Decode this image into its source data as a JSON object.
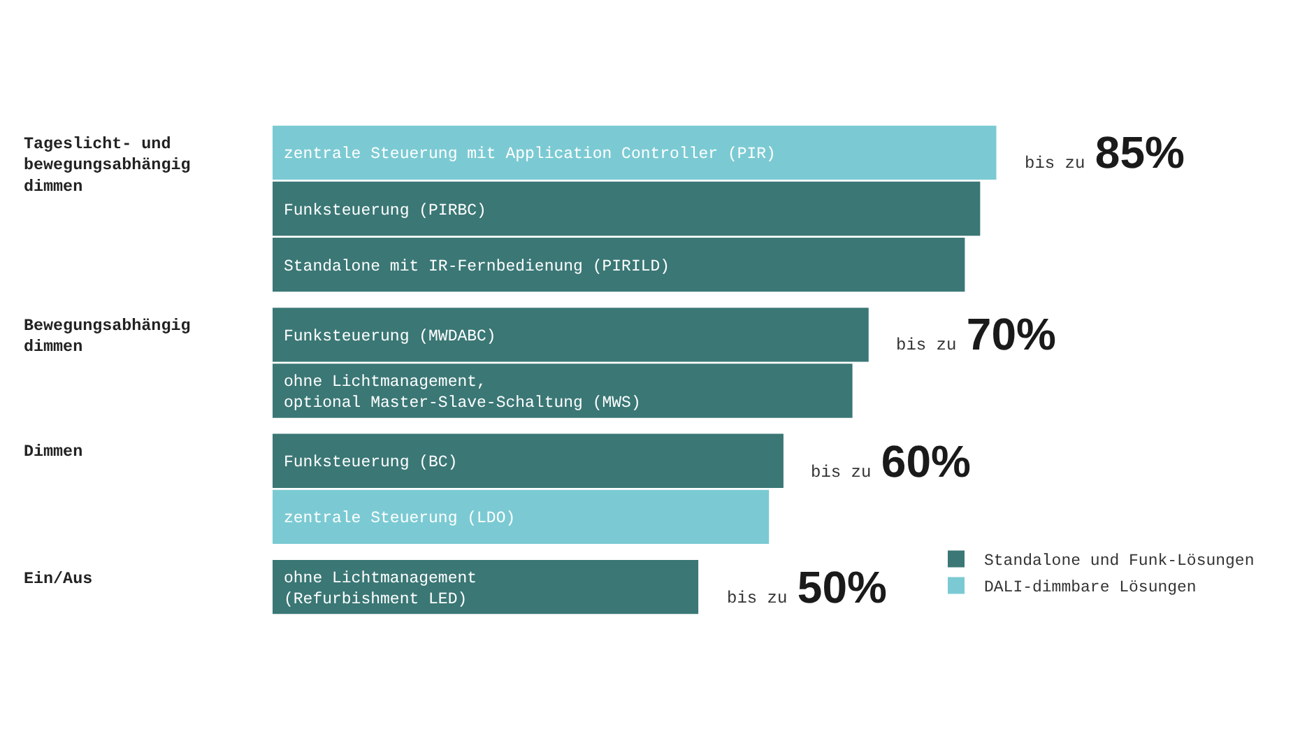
{
  "chart_data": {
    "type": "bar",
    "orientation": "horizontal",
    "categories": [
      "zentrale Steuerung mit Application Controller (PIR)",
      "Funksteuerung (PIRBC)",
      "Standalone mit IR-Fernbedienung (PIRILD)",
      "Funksteuerung (MWDABC)",
      "ohne Lichtmanagement,\noptional Master-Slave-Schaltung (MWS)",
      "Funksteuerung (BC)",
      "zentrale Steuerung (LDO)",
      "ohne Lichtmanagement\n(Refurbishment LED)"
    ],
    "series": [
      {
        "name": "Standalone und Funk-Lösungen",
        "color": "#3a7775",
        "values": [
          null,
          83.1,
          81.3,
          70,
          68.1,
          60,
          null,
          50
        ],
        "value_labels": [
          null,
          null,
          null,
          "bis zu 70%",
          null,
          "bis zu 60%",
          null,
          "bis zu 50%"
        ]
      },
      {
        "name": "DALI-dimmbare Lösungen",
        "color": "#7bcad3",
        "values": [
          85,
          null,
          null,
          null,
          null,
          null,
          58.3,
          null
        ],
        "value_labels": [
          "bis zu 85%",
          null,
          null,
          null,
          null,
          null,
          null,
          null
        ]
      }
    ],
    "tick_labels": "y",
    "annotations": [
      "Tageslicht- und\nbewegungsabhängig\ndimmen",
      "Bewegungsabhängig\ndimmen",
      "Dimmen",
      "Ein/Aus"
    ],
    "legend": "bottom right"
  }
}
